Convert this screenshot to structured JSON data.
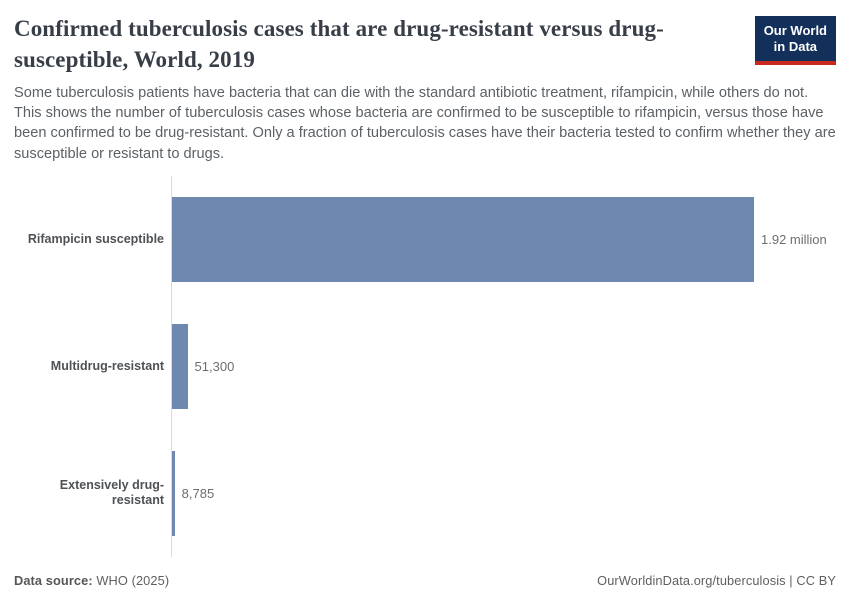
{
  "header": {
    "title": "Confirmed tuberculosis cases that are drug-resistant versus drug-susceptible, World, 2019",
    "subtitle": "Some tuberculosis patients have bacteria that can die with the standard antibiotic treatment, rifampicin, while others do not. This shows the number of tuberculosis cases whose bacteria are confirmed to be susceptible to rifampicin, versus those have been confirmed to be drug-resistant. Only a fraction of tuberculosis cases have their bacteria tested to confirm whether they are susceptible or resistant to drugs.",
    "logo": {
      "line1": "Our World",
      "line2": "in Data"
    }
  },
  "chart_data": {
    "type": "bar",
    "orientation": "horizontal",
    "title": "Confirmed tuberculosis cases that are drug-resistant versus drug-susceptible, World, 2019",
    "categories": [
      "Rifampicin susceptible",
      "Multidrug-resistant",
      "Extensively drug-resistant"
    ],
    "values": [
      1920000,
      51300,
      8785
    ],
    "value_labels": [
      "1.92 million",
      "51,300",
      "8,785"
    ],
    "xlim": [
      0,
      1920000
    ],
    "grid": false,
    "legend": "none",
    "bar_color": "#6e88af",
    "axis_line_color": "#dcdcdc"
  },
  "footer": {
    "data_source_label": "Data source:",
    "data_source_value": " WHO (2025)",
    "attribution": "OurWorldinData.org/tuberculosis | CC BY"
  },
  "colors": {
    "title": "#383e48",
    "subtitle": "#5b6166",
    "bar": "#6e88af",
    "logo_navy": "#12305a",
    "logo_red": "#c8281e"
  }
}
